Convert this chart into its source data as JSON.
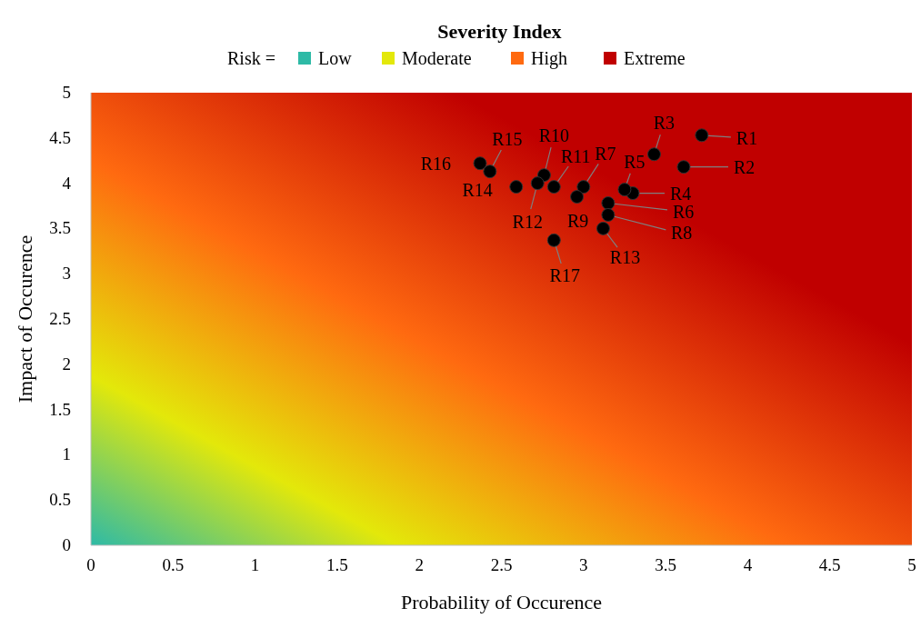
{
  "chart_data": {
    "type": "scatter",
    "title": "Severity Index",
    "xlabel": "Probability of Occurence",
    "ylabel": "Impact of Occurence",
    "legend_title": "Risk =",
    "xlim": [
      0,
      5
    ],
    "ylim": [
      0,
      5
    ],
    "xticks": [
      0,
      0.5,
      1,
      1.5,
      2,
      2.5,
      3,
      3.5,
      4,
      4.5,
      5
    ],
    "yticks": [
      0,
      0.5,
      1,
      1.5,
      2,
      2.5,
      3,
      3.5,
      4,
      4.5,
      5
    ],
    "grid": false,
    "legend": "top",
    "marker": "circle",
    "series": [
      {
        "color": "#000000",
        "x": [
          3.72,
          3.61,
          3.43,
          3.3,
          3.25,
          3.15,
          3.0,
          3.15,
          2.96,
          2.76,
          2.82,
          2.72,
          3.12,
          2.59,
          2.43,
          2.37,
          2.82
        ],
        "values": [
          4.53,
          4.18,
          4.32,
          3.89,
          3.93,
          3.78,
          3.96,
          3.65,
          3.85,
          4.09,
          3.96,
          4.0,
          3.5,
          3.96,
          4.13,
          4.22,
          3.37
        ]
      },
      {
        "name": "Low",
        "color": "#2ebaa6"
      },
      {
        "name": "Moderate",
        "color": "#e3e80a"
      },
      {
        "name": "High",
        "color": "#ff6a10"
      },
      {
        "name": "Extreme",
        "color": "#c00000"
      }
    ],
    "annotations": [
      {
        "text": "R1",
        "x": 3.72,
        "y": 4.53
      },
      {
        "text": "R2",
        "x": 3.61,
        "y": 4.18
      },
      {
        "text": "R3",
        "x": 3.43,
        "y": 4.32
      },
      {
        "text": "R4",
        "x": 3.3,
        "y": 3.89
      },
      {
        "text": "R5",
        "x": 3.25,
        "y": 3.93
      },
      {
        "text": "R6",
        "x": 3.15,
        "y": 3.78
      },
      {
        "text": "R7",
        "x": 3.0,
        "y": 3.96
      },
      {
        "text": "R8",
        "x": 3.15,
        "y": 3.65
      },
      {
        "text": "R9",
        "x": 2.96,
        "y": 3.85
      },
      {
        "text": "R10",
        "x": 2.76,
        "y": 4.09
      },
      {
        "text": "R11",
        "x": 2.82,
        "y": 3.96
      },
      {
        "text": "R12",
        "x": 2.72,
        "y": 4.0
      },
      {
        "text": "R13",
        "x": 3.12,
        "y": 3.5
      },
      {
        "text": "R14",
        "x": 2.59,
        "y": 3.96
      },
      {
        "text": "R15",
        "x": 2.43,
        "y": 4.13
      },
      {
        "text": "R16",
        "x": 2.37,
        "y": 4.22
      },
      {
        "text": "R17",
        "x": 2.82,
        "y": 3.37
      }
    ]
  }
}
